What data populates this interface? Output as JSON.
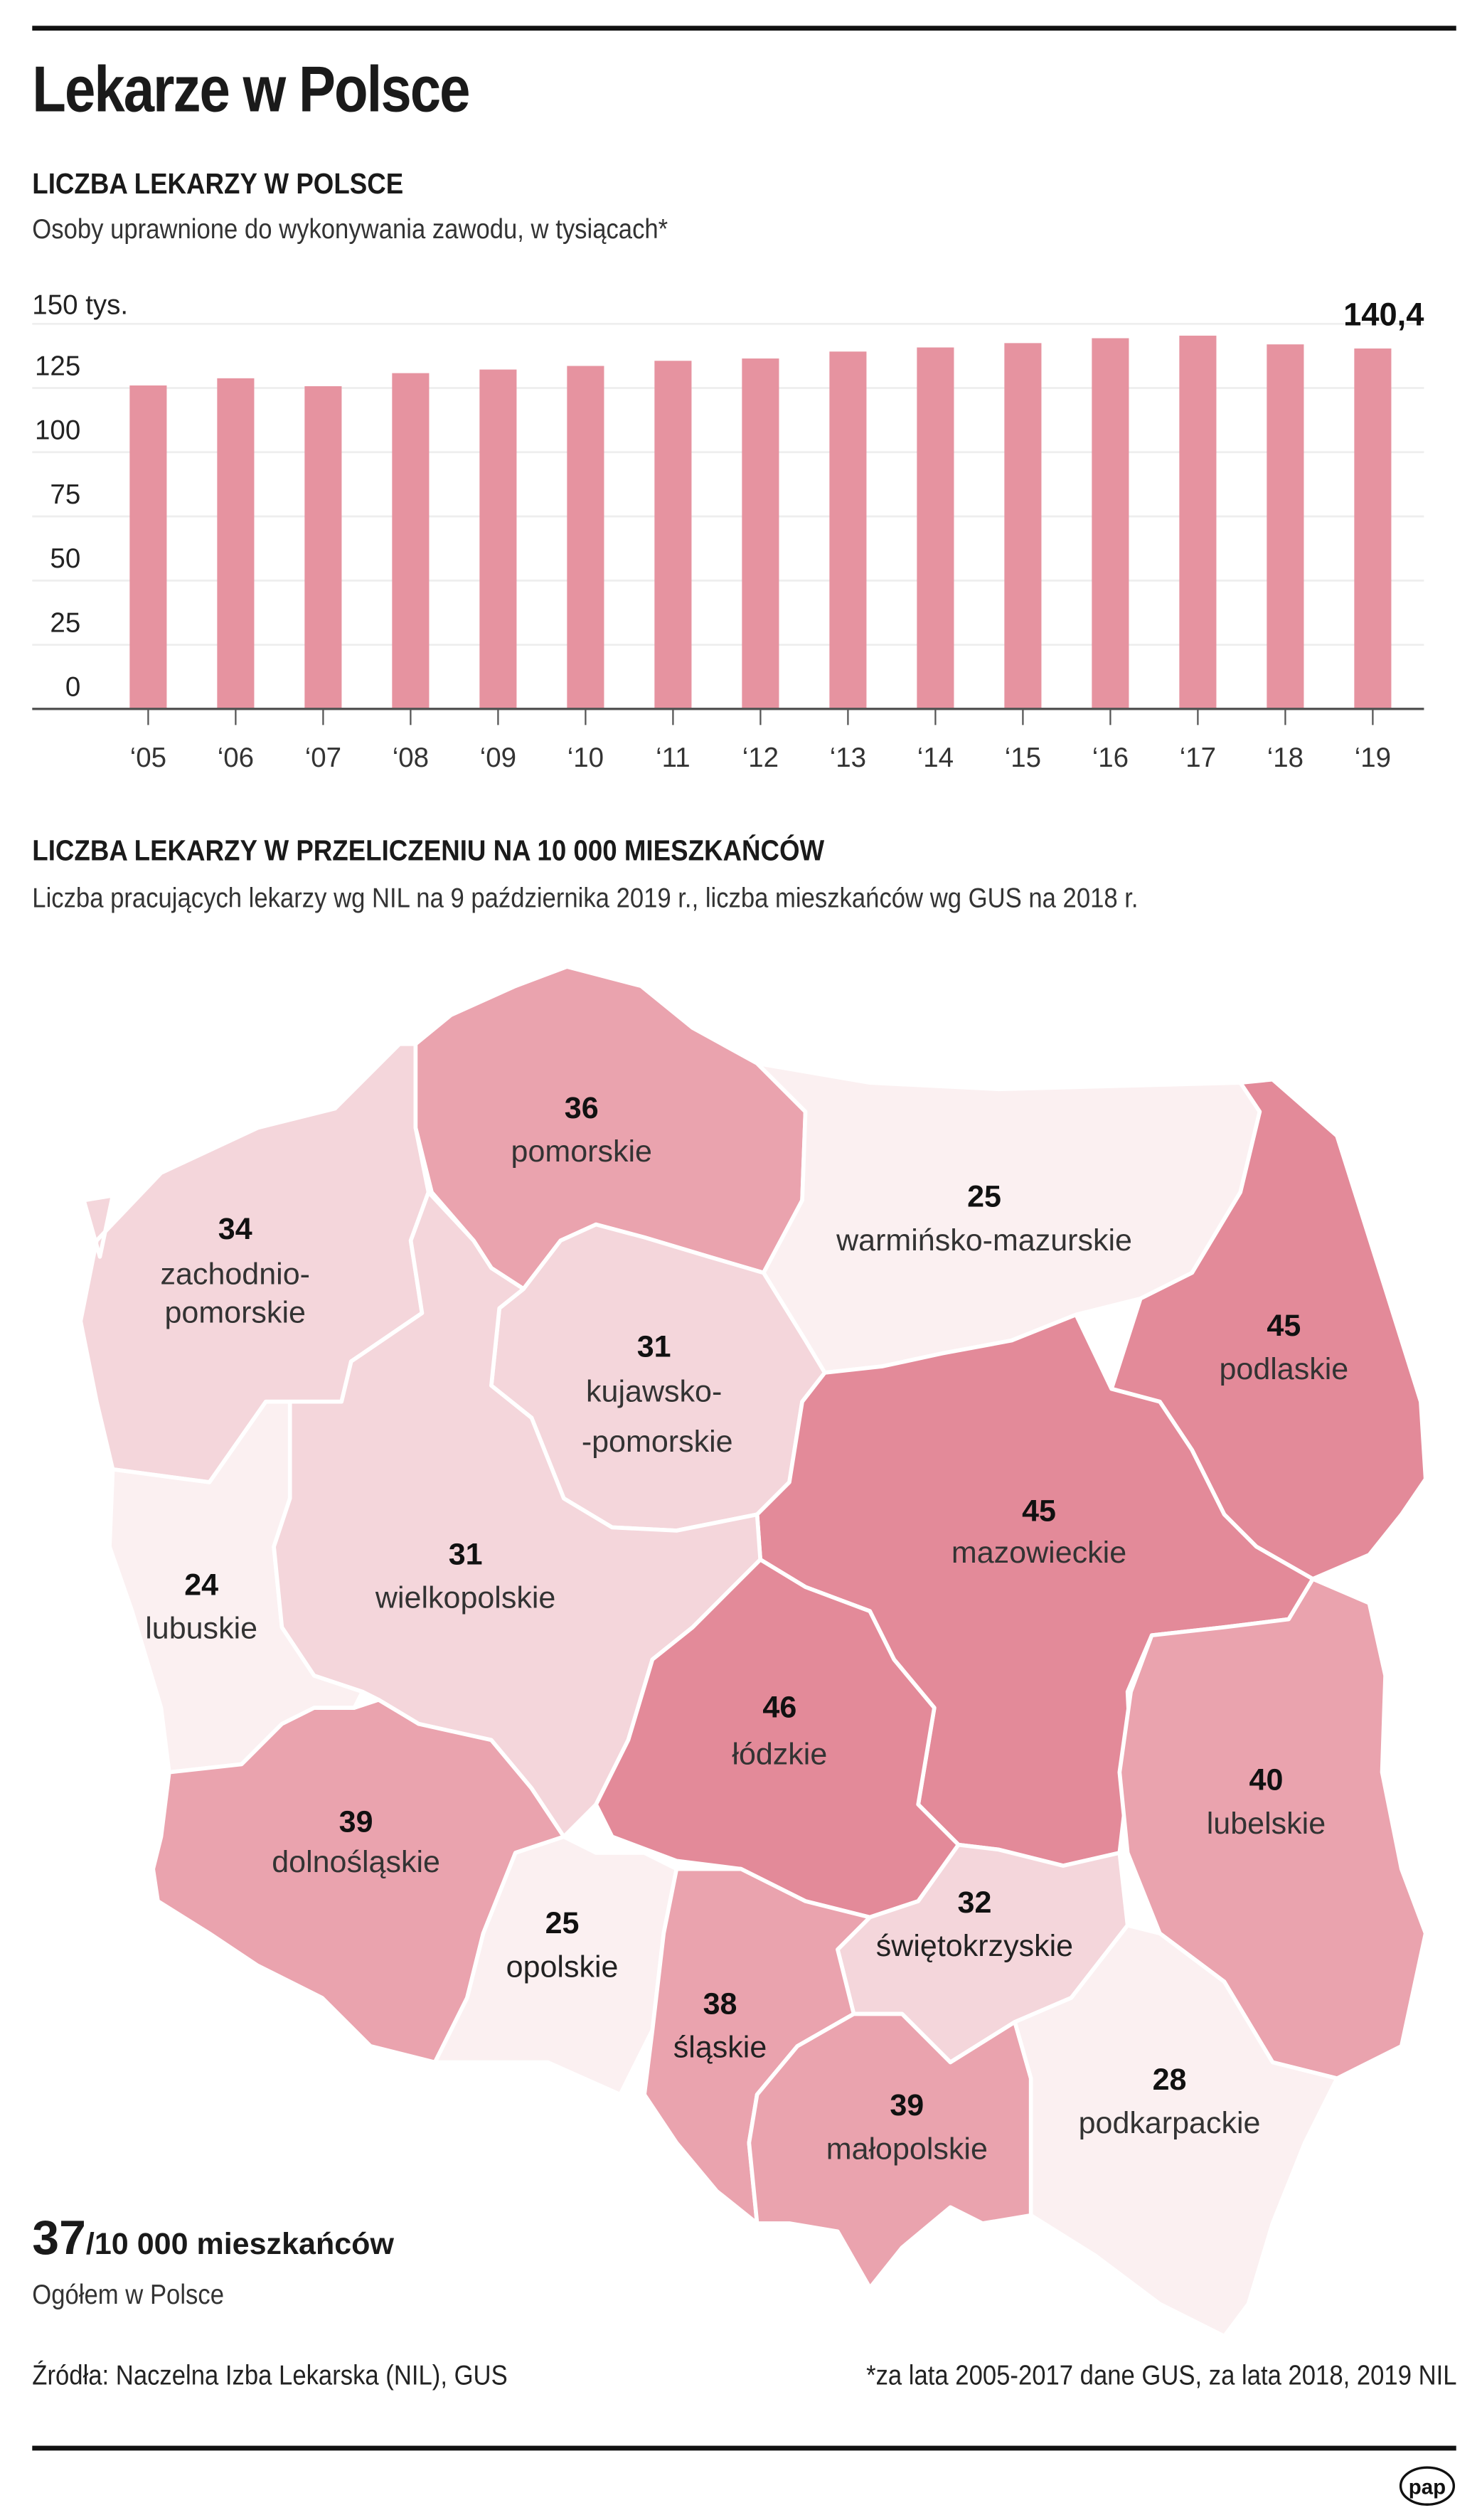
{
  "header": {
    "title": "Lekarze w Polsce"
  },
  "section1": {
    "heading": "LICZBA LEKARZY W POLSCE",
    "subheading": "Osoby uprawnione do wykonywania zawodu, w tysiącach*",
    "y_top_label": "150 tys.",
    "highlight_label": "140,4"
  },
  "chart_data": [
    {
      "type": "bar",
      "title": "LICZBA LEKARZY W POLSCE",
      "subtitle": "Osoby uprawnione do wykonywania zawodu, w tysiącach*",
      "categories": [
        "‘05",
        "‘06",
        "‘07",
        "‘08",
        "‘09",
        "‘10",
        "‘11",
        "‘12",
        "‘13",
        "‘14",
        "‘15",
        "‘16",
        "‘17",
        "‘18",
        "‘19"
      ],
      "values": [
        126.0,
        128.8,
        125.7,
        130.8,
        132.2,
        133.6,
        135.6,
        136.5,
        139.2,
        140.8,
        142.5,
        144.4,
        145.4,
        142.0,
        140.4
      ],
      "yticks": [
        "0",
        "25",
        "50",
        "75",
        "100",
        "125",
        "150 tys."
      ],
      "ylim": [
        0,
        150
      ],
      "ylabel": "tys.",
      "xlabel": "",
      "grid": true,
      "annotations": [
        {
          "category": "‘19",
          "text": "140,4"
        }
      ],
      "bar_color": "#e693a0"
    },
    {
      "type": "choropleth",
      "title": "LICZBA LEKARZY W PRZELICZENIU NA 10 000 MIESZKAŃCÓW",
      "subtitle": "Liczba pracujących lekarzy wg NIL na 9 października 2019 r., liczba mieszkańców wg GUS na 2018 r.",
      "regions": [
        {
          "name": "pomorskie",
          "value": 36
        },
        {
          "name": "zachodniopomorskie",
          "value": 34
        },
        {
          "name": "warmińsko-mazurskie",
          "value": 25
        },
        {
          "name": "podlaskie",
          "value": 45
        },
        {
          "name": "kujawsko-pomorskie",
          "value": 31
        },
        {
          "name": "mazowieckie",
          "value": 45
        },
        {
          "name": "lubuskie",
          "value": 24
        },
        {
          "name": "wielkopolskie",
          "value": 31
        },
        {
          "name": "łódzkie",
          "value": 46
        },
        {
          "name": "lubelskie",
          "value": 40
        },
        {
          "name": "dolnośląskie",
          "value": 39
        },
        {
          "name": "opolskie",
          "value": 25
        },
        {
          "name": "świętokrzyskie",
          "value": 32
        },
        {
          "name": "śląskie",
          "value": 38
        },
        {
          "name": "małopolskie",
          "value": 39
        },
        {
          "name": "podkarpackie",
          "value": 28
        }
      ],
      "total": {
        "value": 37,
        "unit": "/10 000 mieszkańców",
        "label": "Ogółem w Polsce"
      }
    }
  ],
  "section2": {
    "heading": "LICZBA LEKARZY W PRZELICZENIU NA 10 000 MIESZKAŃCÓW",
    "subheading": "Liczba pracujących lekarzy wg NIL na 9 października 2019 r., liczba mieszkańców wg GUS na 2018 r."
  },
  "map": {
    "colors": {
      "c1": "#fbf0f1",
      "c2": "#f4d6db",
      "c3": "#eaa3ae",
      "c4": "#e38a99"
    },
    "regions": {
      "zachodniopomorskie": {
        "value": "34",
        "label1": "zachodnio-",
        "label2": "pomorskie"
      },
      "pomorskie": {
        "value": "36",
        "label1": "pomorskie"
      },
      "warminsko": {
        "value": "25",
        "label1": "warmińsko-mazurskie"
      },
      "podlaskie": {
        "value": "45",
        "label1": "podlaskie"
      },
      "kujawsko": {
        "value": "31",
        "label1": "kujawsko-",
        "label2": "-pomorskie"
      },
      "mazowieckie": {
        "value": "45",
        "label1": "mazowieckie"
      },
      "lubuskie": {
        "value": "24",
        "label1": "lubuskie"
      },
      "wielkopolskie": {
        "value": "31",
        "label1": "wielkopolskie"
      },
      "lodzkie": {
        "value": "46",
        "label1": "łódzkie"
      },
      "lubelskie": {
        "value": "40",
        "label1": "lubelskie"
      },
      "dolnoslaskie": {
        "value": "39",
        "label1": "dolnośląskie"
      },
      "opolskie": {
        "value": "25",
        "label1": "opolskie"
      },
      "swietokrzyskie": {
        "value": "32",
        "label1": "świętokrzyskie"
      },
      "slaskie": {
        "value": "38",
        "label1": "śląskie"
      },
      "malopolskie": {
        "value": "39",
        "label1": "małopolskie"
      },
      "podkarpackie": {
        "value": "28",
        "label1": "podkarpackie"
      }
    }
  },
  "summary": {
    "value": "37",
    "unit": "/10 000 mieszkańców",
    "label": "Ogółem w Polsce"
  },
  "footer": {
    "sources": "Źródła: Naczelna Izba Lekarska (NIL), GUS",
    "note": "*za lata 2005-2017 dane GUS, za lata 2018, 2019 NIL",
    "logo": "pap"
  }
}
